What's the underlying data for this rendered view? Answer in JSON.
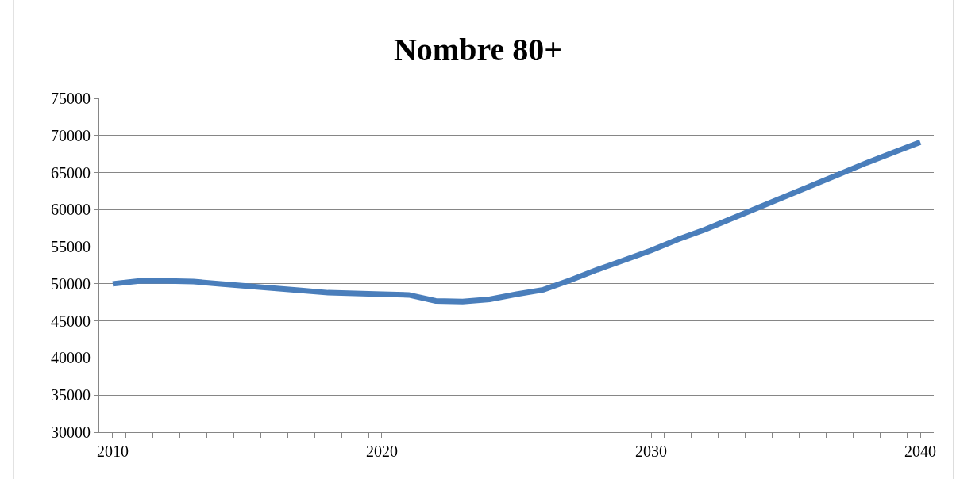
{
  "chart_data": {
    "type": "line",
    "title": "Nombre 80+",
    "categories": [
      "2010",
      null,
      null,
      null,
      null,
      null,
      null,
      null,
      null,
      null,
      "2020",
      null,
      null,
      null,
      null,
      null,
      null,
      null,
      null,
      null,
      "2030",
      null,
      null,
      null,
      null,
      null,
      null,
      null,
      null,
      null,
      "2040"
    ],
    "series": [
      {
        "color": "#4a7ebb",
        "values": [
          50000,
          50400,
          50400,
          50300,
          50000,
          49700,
          49400,
          49100,
          48800,
          48700,
          48600,
          48500,
          47700,
          47600,
          47900,
          48600,
          49200,
          50500,
          51900,
          53200,
          54500,
          56000,
          57300,
          58800,
          60300,
          61800,
          63300,
          64800,
          66300,
          67700,
          69100
        ]
      }
    ],
    "ylim": [
      30000,
      75000
    ],
    "yticks": [
      30000,
      35000,
      40000,
      45000,
      50000,
      55000,
      60000,
      65000,
      70000,
      75000
    ],
    "grid": "y",
    "marker": "none",
    "line_style": "solid"
  }
}
